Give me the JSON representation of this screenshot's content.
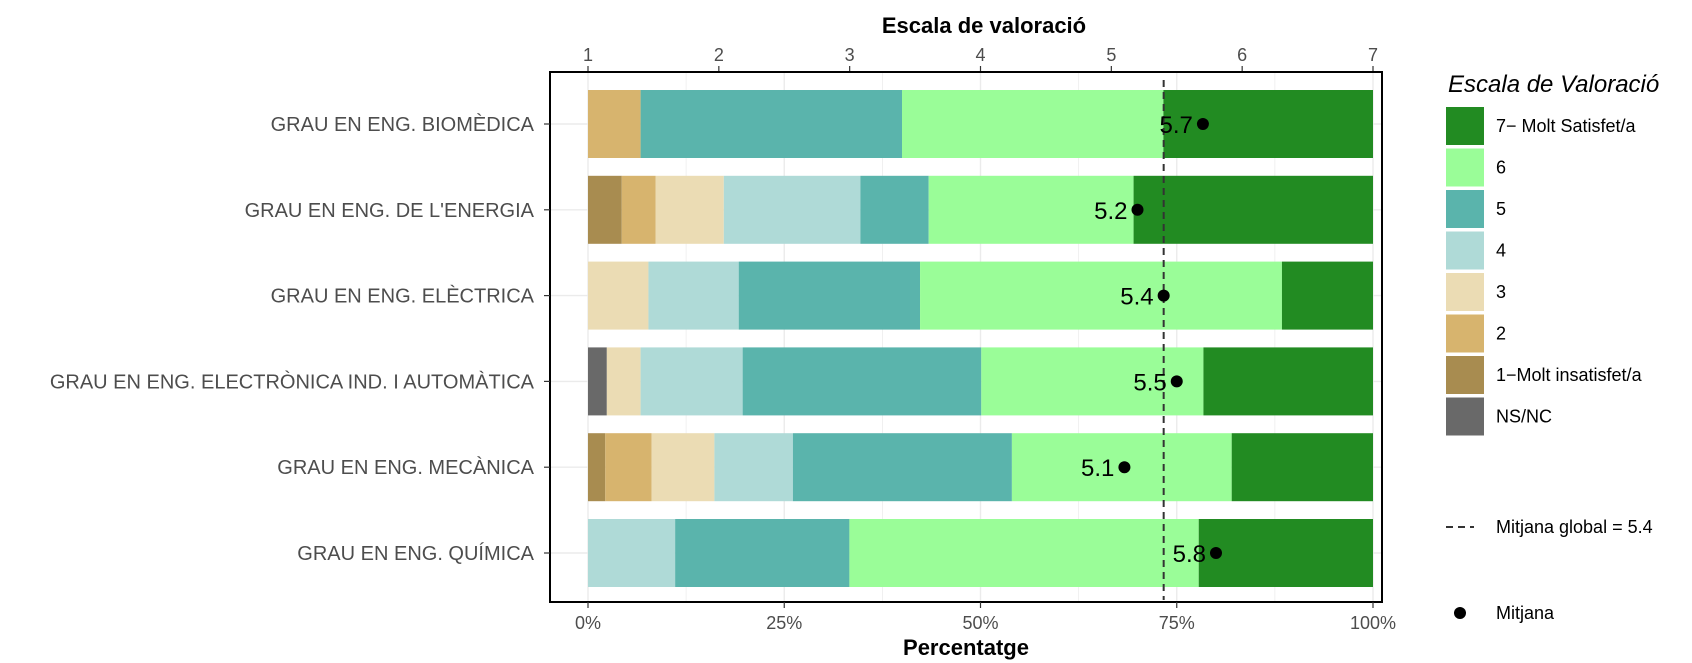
{
  "chart_data": {
    "type": "bar",
    "orientation": "horizontal",
    "stacked": true,
    "top_axis_title": "Escala de valoració",
    "top_axis_ticks": [
      "1",
      "2",
      "3",
      "4",
      "5",
      "6",
      "7"
    ],
    "bottom_axis_title": "Percentatge",
    "bottom_axis_ticks": [
      "0%",
      "25%",
      "50%",
      "75%",
      "100%"
    ],
    "xlim_percent": [
      0,
      100
    ],
    "top_axis_range": [
      1,
      7
    ],
    "grid": true,
    "legend_position": "right",
    "legend_title": "Escala de Valoració",
    "categories": [
      "GRAU EN ENG. BIOMÈDICA",
      "GRAU EN ENG. DE L'ENERGIA",
      "GRAU EN ENG. ELÈCTRICA",
      "GRAU EN ENG. ELECTRÒNICA IND. I AUTOMÀTICA",
      "GRAU EN ENG. MECÀNICA",
      "GRAU EN ENG. QUÍMICA"
    ],
    "series": [
      {
        "name": "NS/NC",
        "color": "#696969",
        "values": [
          0,
          0,
          0,
          2.4,
          0,
          0
        ]
      },
      {
        "name": "1−Molt insatisfet/a",
        "color": "#A88C50",
        "values": [
          0,
          4.3,
          0,
          0,
          2.2,
          0
        ]
      },
      {
        "name": "2",
        "color": "#D7B46E",
        "values": [
          6.7,
          4.3,
          0,
          0,
          5.9,
          0
        ]
      },
      {
        "name": "3",
        "color": "#EBDCB4",
        "values": [
          0,
          8.7,
          7.7,
          4.3,
          8.0,
          0
        ]
      },
      {
        "name": "4",
        "color": "#AFDAD7",
        "values": [
          0,
          17.4,
          11.5,
          13.0,
          10.0,
          11.1
        ]
      },
      {
        "name": "5",
        "color": "#5AB4AC",
        "values": [
          33.3,
          8.7,
          23.1,
          30.4,
          27.9,
          22.2
        ]
      },
      {
        "name": "6",
        "color": "#9AFD98",
        "values": [
          33.3,
          26.1,
          46.1,
          28.3,
          28.0,
          44.5
        ]
      },
      {
        "name": "7− Molt Satisfet/a",
        "color": "#228B22",
        "values": [
          26.7,
          30.5,
          11.6,
          21.6,
          18.0,
          22.2
        ]
      }
    ],
    "means": [
      5.7,
      5.2,
      5.4,
      5.5,
      5.1,
      5.8
    ],
    "mean_labels": [
      "5.7",
      "5.2",
      "5.4",
      "5.5",
      "5.1",
      "5.8"
    ],
    "global_mean": 5.4,
    "global_mean_label": "Mitjana global =  5.4",
    "mean_legend_label": "Mitjana"
  }
}
